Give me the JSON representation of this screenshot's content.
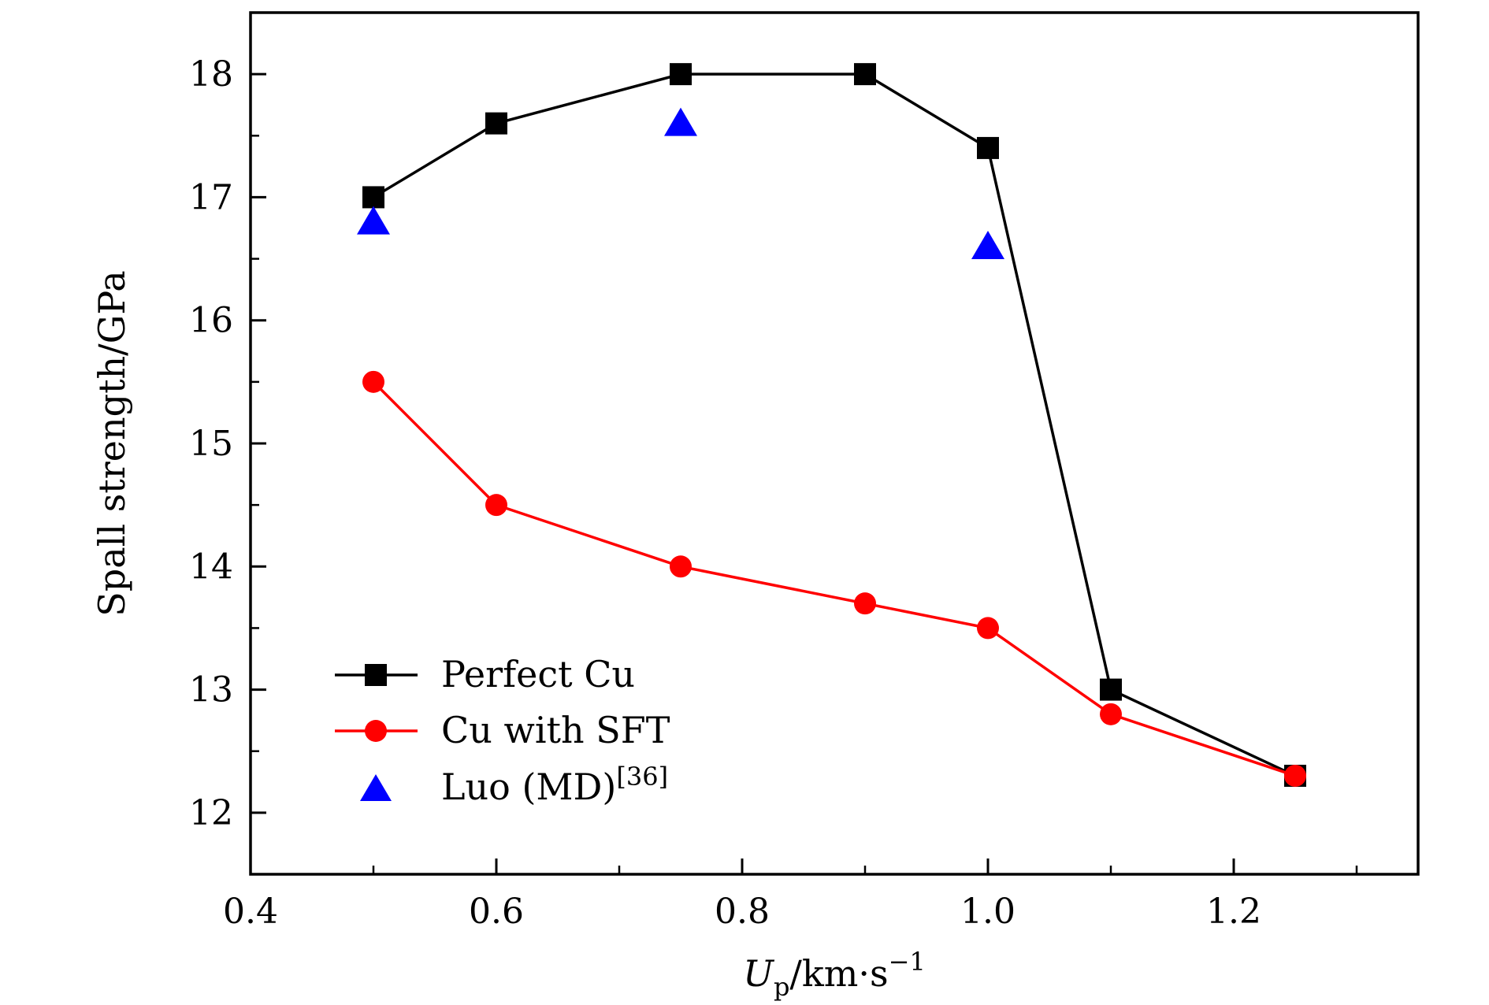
{
  "chart_data": {
    "type": "line",
    "xlabel": {
      "symbol": "U",
      "subscript": "p",
      "unit": "/km·s",
      "superscript": "−1"
    },
    "ylabel": "Spall strength/GPa",
    "xlim": [
      0.4,
      1.35
    ],
    "ylim": [
      11.5,
      18.5
    ],
    "x_major_ticks": [
      0.4,
      0.6,
      0.8,
      1.0,
      1.2
    ],
    "x_tick_labels": [
      "0.4",
      "0.6",
      "0.8",
      "1.0",
      "1.2"
    ],
    "x_minor_ticks": [
      0.5,
      0.7,
      0.9,
      1.1,
      1.3
    ],
    "y_major_ticks": [
      12,
      13,
      14,
      15,
      16,
      17,
      18
    ],
    "y_tick_labels": [
      "12",
      "13",
      "14",
      "15",
      "16",
      "17",
      "18"
    ],
    "y_minor_ticks": [
      12.5,
      13.5,
      14.5,
      15.5,
      16.5,
      17.5
    ],
    "grid": false,
    "legend_position": "bottom-left",
    "series": [
      {
        "name": "Perfect Cu",
        "marker": "square",
        "line": true,
        "color": "#000000",
        "x": [
          0.5,
          0.6,
          0.75,
          0.9,
          1.0,
          1.1,
          1.25
        ],
        "y": [
          17.0,
          17.6,
          18.0,
          18.0,
          17.4,
          13.0,
          12.3
        ]
      },
      {
        "name": "Cu with SFT",
        "marker": "circle",
        "line": true,
        "color": "#ff0000",
        "x": [
          0.5,
          0.6,
          0.75,
          0.9,
          1.0,
          1.1,
          1.25
        ],
        "y": [
          15.5,
          14.5,
          14.0,
          13.7,
          13.5,
          12.8,
          12.3
        ]
      },
      {
        "name": "Luo (MD)",
        "name_superscript": "[36]",
        "marker": "triangle",
        "line": false,
        "color": "#0000ff",
        "x": [
          0.5,
          0.75,
          1.0
        ],
        "y": [
          16.8,
          17.6,
          16.6
        ]
      }
    ]
  }
}
